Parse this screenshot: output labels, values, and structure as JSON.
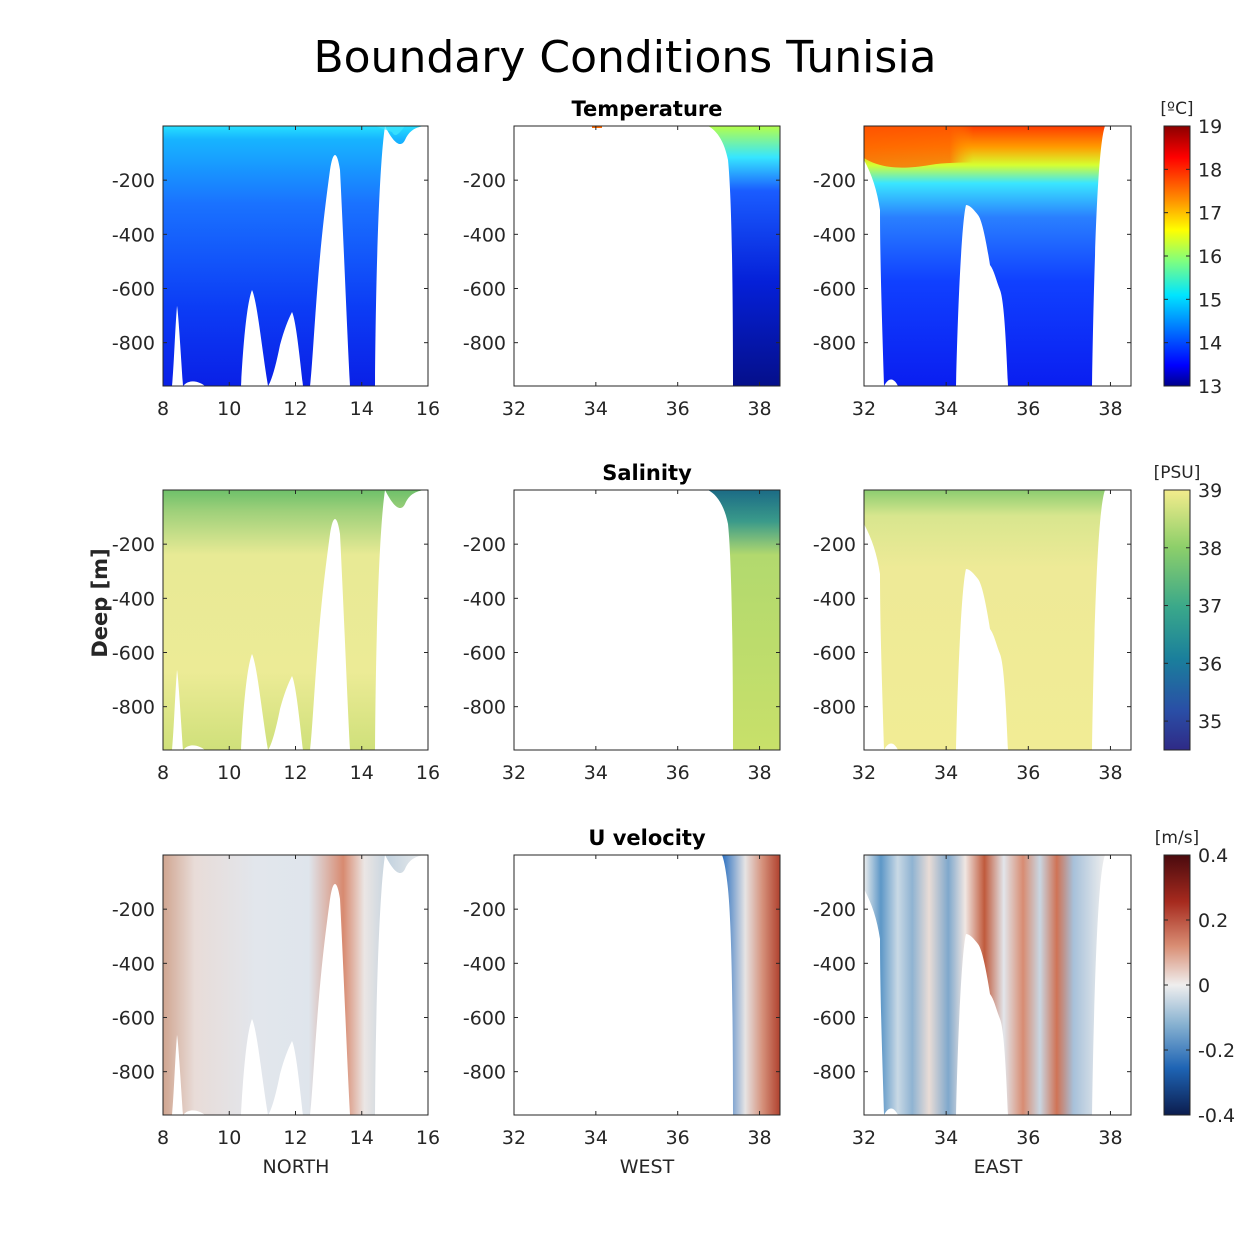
{
  "figure": {
    "title": "Boundary Conditions Tunisia",
    "ylabel": "Deep [m]"
  },
  "chart_data": {
    "type": "heatmap",
    "title": "Boundary Conditions Tunisia",
    "ylabel": "Deep [m]",
    "columns": [
      {
        "name": "NORTH",
        "xlim": [
          8,
          16
        ],
        "xticks": [
          8,
          10,
          12,
          14,
          16
        ]
      },
      {
        "name": "WEST",
        "xlim": [
          32,
          38.5
        ],
        "xticks": [
          32,
          34,
          36,
          38
        ]
      },
      {
        "name": "EAST",
        "xlim": [
          32,
          38.5
        ],
        "xticks": [
          32,
          34,
          36,
          38
        ]
      }
    ],
    "ylim": [
      -960,
      0
    ],
    "yticks": [
      -200,
      -400,
      -600,
      -800
    ],
    "rows": [
      {
        "variable": "Temperature",
        "colorbar": {
          "unit": "[ºC]",
          "range": [
            13,
            19
          ],
          "ticks": [
            "19",
            "18",
            "17",
            "16",
            "15",
            "14",
            "13"
          ],
          "colors": [
            "#00008f",
            "#0000ff",
            "#0080ff",
            "#00ffff",
            "#80ff80",
            "#ffff00",
            "#ff8000",
            "#ff0000",
            "#800000"
          ]
        }
      },
      {
        "variable": "Salinity",
        "colorbar": {
          "unit": "[PSU]",
          "range": [
            34.5,
            39
          ],
          "ticks": [
            "39",
            "38",
            "37",
            "36",
            "35"
          ],
          "colors": [
            "#352a87",
            "#0f5cdd",
            "#1481d6",
            "#06a4ca",
            "#2eb7a4",
            "#87bf77",
            "#d1bb59",
            "#f8fa0d"
          ]
        }
      },
      {
        "variable": "U velocity",
        "colorbar": {
          "unit": "[m/s]",
          "range": [
            -0.4,
            0.4
          ],
          "ticks": [
            "0.4",
            "0.2",
            "0",
            "-0.2",
            "-0.4"
          ],
          "colors": [
            "#0a1f4d",
            "#1f5fae",
            "#7fb0d3",
            "#e6eaee",
            "#e0b8a2",
            "#b6462d",
            "#4d0b0b"
          ]
        }
      }
    ]
  }
}
